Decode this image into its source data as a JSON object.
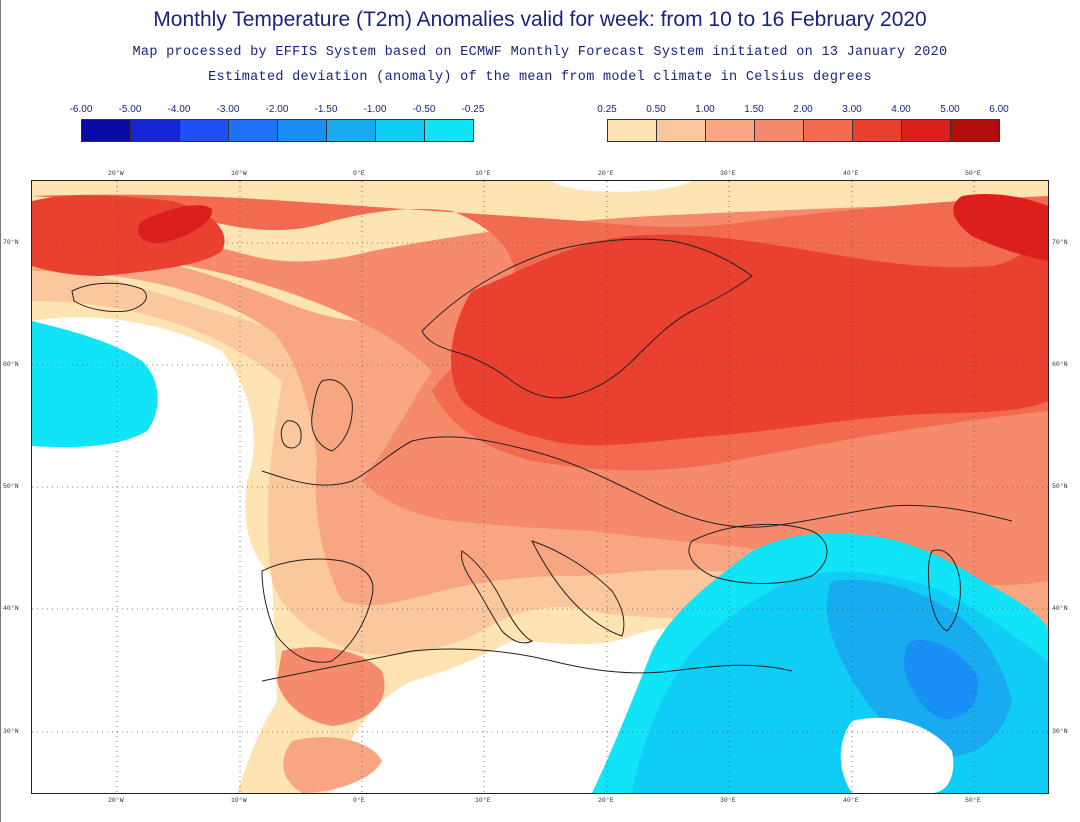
{
  "title": "Monthly Temperature (T2m) Anomalies valid for week: from 10 to 16 February 2020",
  "subtitle_1": "Map processed by EFFIS System based on ECMWF Monthly Forecast System initiated on 13 January 2020",
  "subtitle_2": "Estimated deviation (anomaly) of the mean from model climate in Celsius degrees",
  "legend": {
    "negative": {
      "labels": [
        "-6.00",
        "-5.00",
        "-4.00",
        "-3.00",
        "-2.00",
        "-1.50",
        "-1.00",
        "-0.50",
        "-0.25"
      ],
      "colors": [
        "#0a0aa5",
        "#1626d6",
        "#1f4ff5",
        "#1f6ff7",
        "#1a8ff5",
        "#18abf0",
        "#10cdf5",
        "#12e4f7"
      ]
    },
    "positive": {
      "labels": [
        "0.25",
        "0.50",
        "1.00",
        "1.50",
        "2.00",
        "3.00",
        "4.00",
        "5.00",
        "6.00"
      ],
      "colors": [
        "#fde4b2",
        "#fbc79d",
        "#f8a682",
        "#f68a6c",
        "#f26a50",
        "#ea4030",
        "#dc1e1c",
        "#b20e0e"
      ]
    }
  },
  "map": {
    "lon_labels": [
      "20°W",
      "10°W",
      "0°E",
      "10°E",
      "20°E",
      "30°E",
      "40°E",
      "50°E"
    ],
    "lat_labels": [
      "70°N",
      "60°N",
      "50°N",
      "40°N",
      "30°N"
    ],
    "colors": {
      "neutral": "#ffffff",
      "pos_025": "#fde4b2",
      "pos_050": "#fbc79d",
      "pos_100": "#f8a682",
      "pos_150": "#f68a6c",
      "pos_200": "#f26a50",
      "pos_300": "#ea4030",
      "pos_400": "#dc1e1c",
      "neg_050": "#12e4f7",
      "neg_100": "#10cdf5",
      "neg_150": "#18abf0",
      "neg_200": "#1a8ff5",
      "coast": "#222222",
      "grid": "#555555"
    }
  }
}
